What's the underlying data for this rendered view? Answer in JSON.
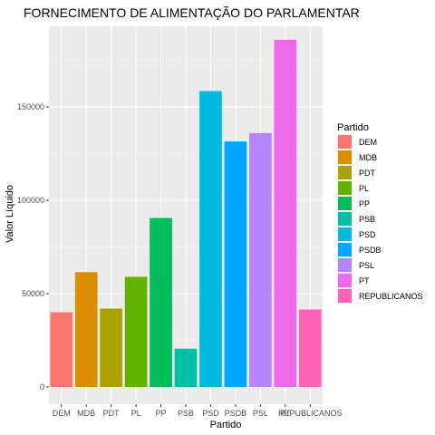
{
  "chart_data": {
    "type": "bar",
    "title": "FORNECIMENTO DE ALIMENTAÇÃO DO PARLAMENTAR",
    "xlabel": "Partido",
    "ylabel": "Valor Líquido",
    "ylim": [
      0,
      195000
    ],
    "yticks": [
      0,
      50000,
      100000,
      150000
    ],
    "ytick_labels": [
      "0",
      "50000",
      "100000",
      "150000"
    ],
    "grid": true,
    "legend": {
      "title": "Partido",
      "placement": "right"
    },
    "categories": [
      "DEM",
      "MDB",
      "PDT",
      "PL",
      "PP",
      "PSB",
      "PSD",
      "PSDB",
      "PSL",
      "PT",
      "REPUBLICANOS"
    ],
    "values": [
      40000,
      61500,
      42000,
      59000,
      90500,
      20500,
      158500,
      131500,
      136000,
      186000,
      41500
    ],
    "colors": [
      "#F8766D",
      "#DB8E00",
      "#AEA200",
      "#64B200",
      "#00BD5C",
      "#00C1A7",
      "#00BADE",
      "#00A6FF",
      "#B385FF",
      "#EF67EB",
      "#FF63B6"
    ]
  }
}
